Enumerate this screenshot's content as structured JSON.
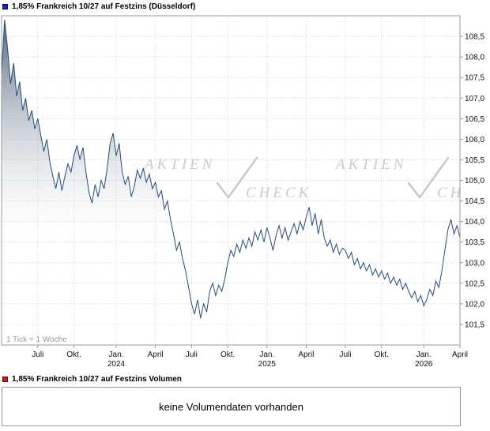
{
  "header": {
    "legend_label": "1,85% Frankreich 10/27 auf Festzins (Düsseldorf)",
    "legend_color": "#2222bb"
  },
  "chart": {
    "tick_note": "1 Tick = 1 Woche",
    "watermark": {
      "word1": "AKTIEN",
      "word2": "CHECK",
      "check_icon": "check-mark"
    }
  },
  "chart_data": {
    "type": "line",
    "title": "1,85% Frankreich 10/27 auf Festzins (Düsseldorf)",
    "xlabel": "",
    "ylabel": "",
    "ylim": [
      101.0,
      109.0
    ],
    "yticks": [
      108.5,
      108.0,
      107.5,
      107.0,
      106.5,
      106.0,
      105.5,
      105.0,
      104.5,
      104.0,
      103.5,
      103.0,
      102.5,
      102.0,
      101.5
    ],
    "grid": true,
    "legend_position": "top-left",
    "x_unit": "1 Tick = 1 Woche",
    "weeks_total": 152,
    "x_axis": [
      {
        "label": "Juli",
        "week": 12
      },
      {
        "label": "Okt.",
        "week": 24
      },
      {
        "label": "Jan.",
        "year": "2024",
        "week": 38
      },
      {
        "label": "April",
        "week": 51
      },
      {
        "label": "Juli",
        "week": 63
      },
      {
        "label": "Okt.",
        "week": 75
      },
      {
        "label": "Jan.",
        "year": "2025",
        "week": 88
      },
      {
        "label": "April",
        "week": 101
      },
      {
        "label": "Juli",
        "week": 114
      },
      {
        "label": "Okt.",
        "week": 126
      },
      {
        "label": "Jan.",
        "year": "2026",
        "week": 140
      },
      {
        "label": "April",
        "week": 152
      }
    ],
    "line_color": "#274a7a",
    "series": [
      {
        "name": "1,85% Frankreich 10/27 auf Festzins (Düsseldorf)",
        "values": [
          107.6,
          108.9,
          108.2,
          107.35,
          107.85,
          107.05,
          107.4,
          106.7,
          107.0,
          106.45,
          106.7,
          106.25,
          106.5,
          106.1,
          105.7,
          106.0,
          105.45,
          105.1,
          104.8,
          105.2,
          104.75,
          105.1,
          105.4,
          105.2,
          105.6,
          105.85,
          105.5,
          105.8,
          105.2,
          104.7,
          104.45,
          104.9,
          104.6,
          105.0,
          104.8,
          105.3,
          105.9,
          106.15,
          105.6,
          105.9,
          105.2,
          104.9,
          105.1,
          104.6,
          104.85,
          105.25,
          105.05,
          105.3,
          104.95,
          105.15,
          104.8,
          104.95,
          104.6,
          104.75,
          104.3,
          104.5,
          104.05,
          103.7,
          103.3,
          103.5,
          103.1,
          102.8,
          102.4,
          102.0,
          101.75,
          102.1,
          101.65,
          102.0,
          101.8,
          102.3,
          102.5,
          102.2,
          102.45,
          102.3,
          102.6,
          103.0,
          103.3,
          103.15,
          103.45,
          103.25,
          103.55,
          103.35,
          103.6,
          103.4,
          103.75,
          103.55,
          103.8,
          103.5,
          103.85,
          103.6,
          103.3,
          103.65,
          103.9,
          103.6,
          103.85,
          103.55,
          103.75,
          103.95,
          103.7,
          104.0,
          103.8,
          104.1,
          104.35,
          103.9,
          104.2,
          103.7,
          104.05,
          103.6,
          103.4,
          103.55,
          103.25,
          103.45,
          103.2,
          103.35,
          103.3,
          103.1,
          103.25,
          102.95,
          103.1,
          102.85,
          103.0,
          102.8,
          102.95,
          102.7,
          102.85,
          102.65,
          102.8,
          102.6,
          102.75,
          102.5,
          102.65,
          102.45,
          102.6,
          102.35,
          102.5,
          102.3,
          102.15,
          102.3,
          102.05,
          102.2,
          101.95,
          102.1,
          102.35,
          102.2,
          102.55,
          102.4,
          102.8,
          103.3,
          103.8,
          104.05,
          103.7,
          103.9,
          103.6
        ]
      }
    ]
  },
  "volume": {
    "legend_label": "1,85% Frankreich 10/27 auf Festzins Volumen",
    "legend_color": "#bb2222",
    "empty_message": "keine Volumendaten vorhanden"
  }
}
